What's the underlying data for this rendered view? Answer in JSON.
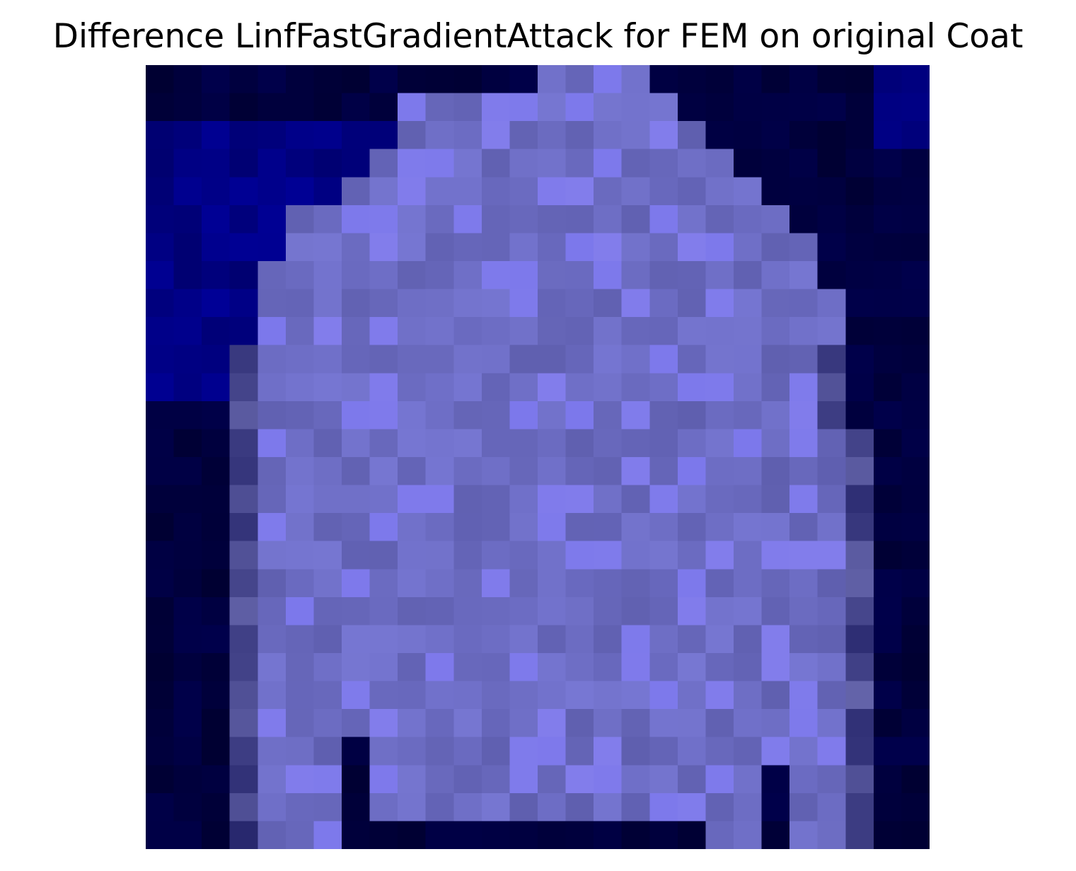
{
  "figure": {
    "title": "Difference LinfFastGradientAttack for FEM on original Coat"
  },
  "image": {
    "description_icon": "pixelated-coat-heatmap-icon",
    "colors": {
      "background_dark": "#00003c",
      "background_blue": "#00008a",
      "coat_base": "#6f6fb8",
      "coat_light": "#8585de",
      "coat_bright": "#6767f0",
      "outline_dark": "#17174f"
    }
  }
}
